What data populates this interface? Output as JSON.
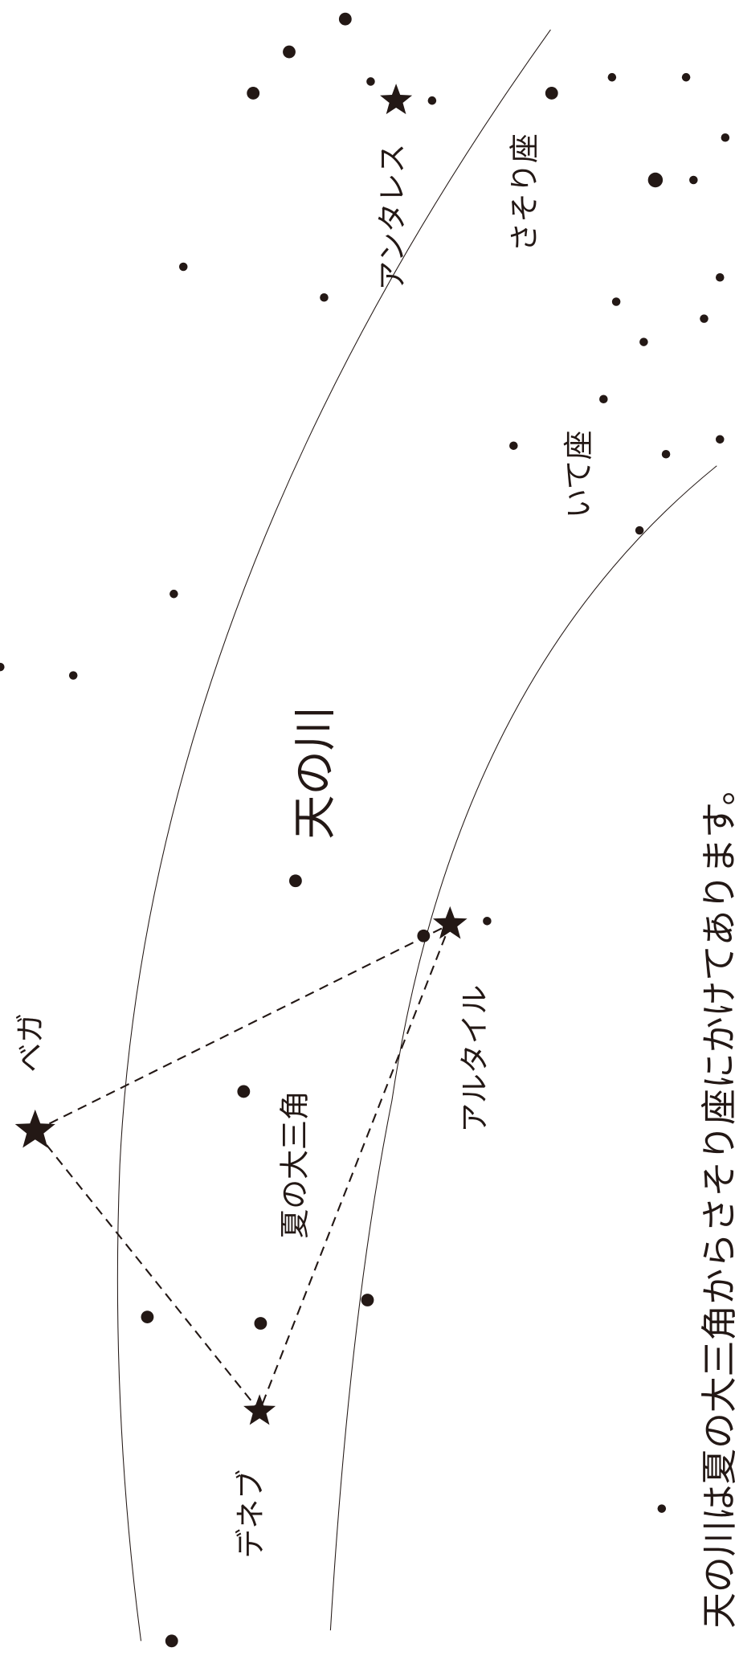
{
  "labels": {
    "vega": "ベガ",
    "deneb": "デネブ",
    "altair": "アルタイル",
    "summer_triangle": "夏の大三角",
    "milky_way": "天の川",
    "antares": "アンタレス",
    "scorpius": "さそり座",
    "sagittarius": "いて座"
  },
  "caption": "天の川は夏の大三角からさそり座にかけてあります。"
}
